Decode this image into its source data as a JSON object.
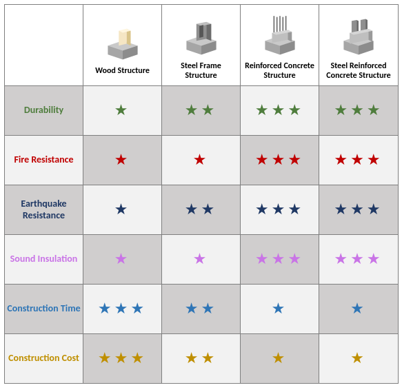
{
  "table": {
    "border_color": "#7f7f7f",
    "header_bg": "#ffffff",
    "row_alt_bg": [
      "#d0cece",
      "#f2f2f2"
    ],
    "columns": [
      {
        "key": "wood",
        "label": "Wood Structure",
        "icon": "wood"
      },
      {
        "key": "steel",
        "label": "Steel Frame Structure",
        "icon": "steel"
      },
      {
        "key": "rc",
        "label": "Reinforced Concrete Structure",
        "icon": "rc"
      },
      {
        "key": "src",
        "label": "Steel Reinforced Concrete Structure",
        "icon": "src"
      }
    ],
    "rows": [
      {
        "label": "Durability",
        "label_color": "#4f7d3d",
        "star_color": "#4f7d3d",
        "values": {
          "wood": 1,
          "steel": 2,
          "rc": 3,
          "src": 3
        }
      },
      {
        "label": "Fire Resistance",
        "label_color": "#c00000",
        "star_color": "#c00000",
        "values": {
          "wood": 1,
          "steel": 1,
          "rc": 3,
          "src": 3
        }
      },
      {
        "label": "Earthquake Resistance",
        "label_color": "#1f3864",
        "star_color": "#1f3864",
        "values": {
          "wood": 1,
          "steel": 2,
          "rc": 3,
          "src": 3
        }
      },
      {
        "label": "Sound Insulation",
        "label_color": "#c974e6",
        "star_color": "#c974e6",
        "values": {
          "wood": 1,
          "steel": 1,
          "rc": 3,
          "src": 3
        }
      },
      {
        "label": "Construction Time",
        "label_color": "#2e75b6",
        "star_color": "#2e75b6",
        "values": {
          "wood": 3,
          "steel": 2,
          "rc": 1,
          "src": 1
        }
      },
      {
        "label": "Construction Cost",
        "label_color": "#bf8f00",
        "star_color": "#bf8f00",
        "values": {
          "wood": 3,
          "steel": 2,
          "rc": 1,
          "src": 1
        }
      }
    ],
    "icon_colors": {
      "base_light": "#c9c9c9",
      "base_mid": "#a6a6a6",
      "base_dark": "#8c8c8c",
      "wood_light": "#f5e6c4",
      "wood_dark": "#d9c48a",
      "steel_light": "#8f8f8f",
      "steel_dark": "#6b6b6b",
      "rebar": "#595959",
      "conc_light": "#bfbfbf",
      "conc_dark": "#9a9a9a"
    }
  }
}
